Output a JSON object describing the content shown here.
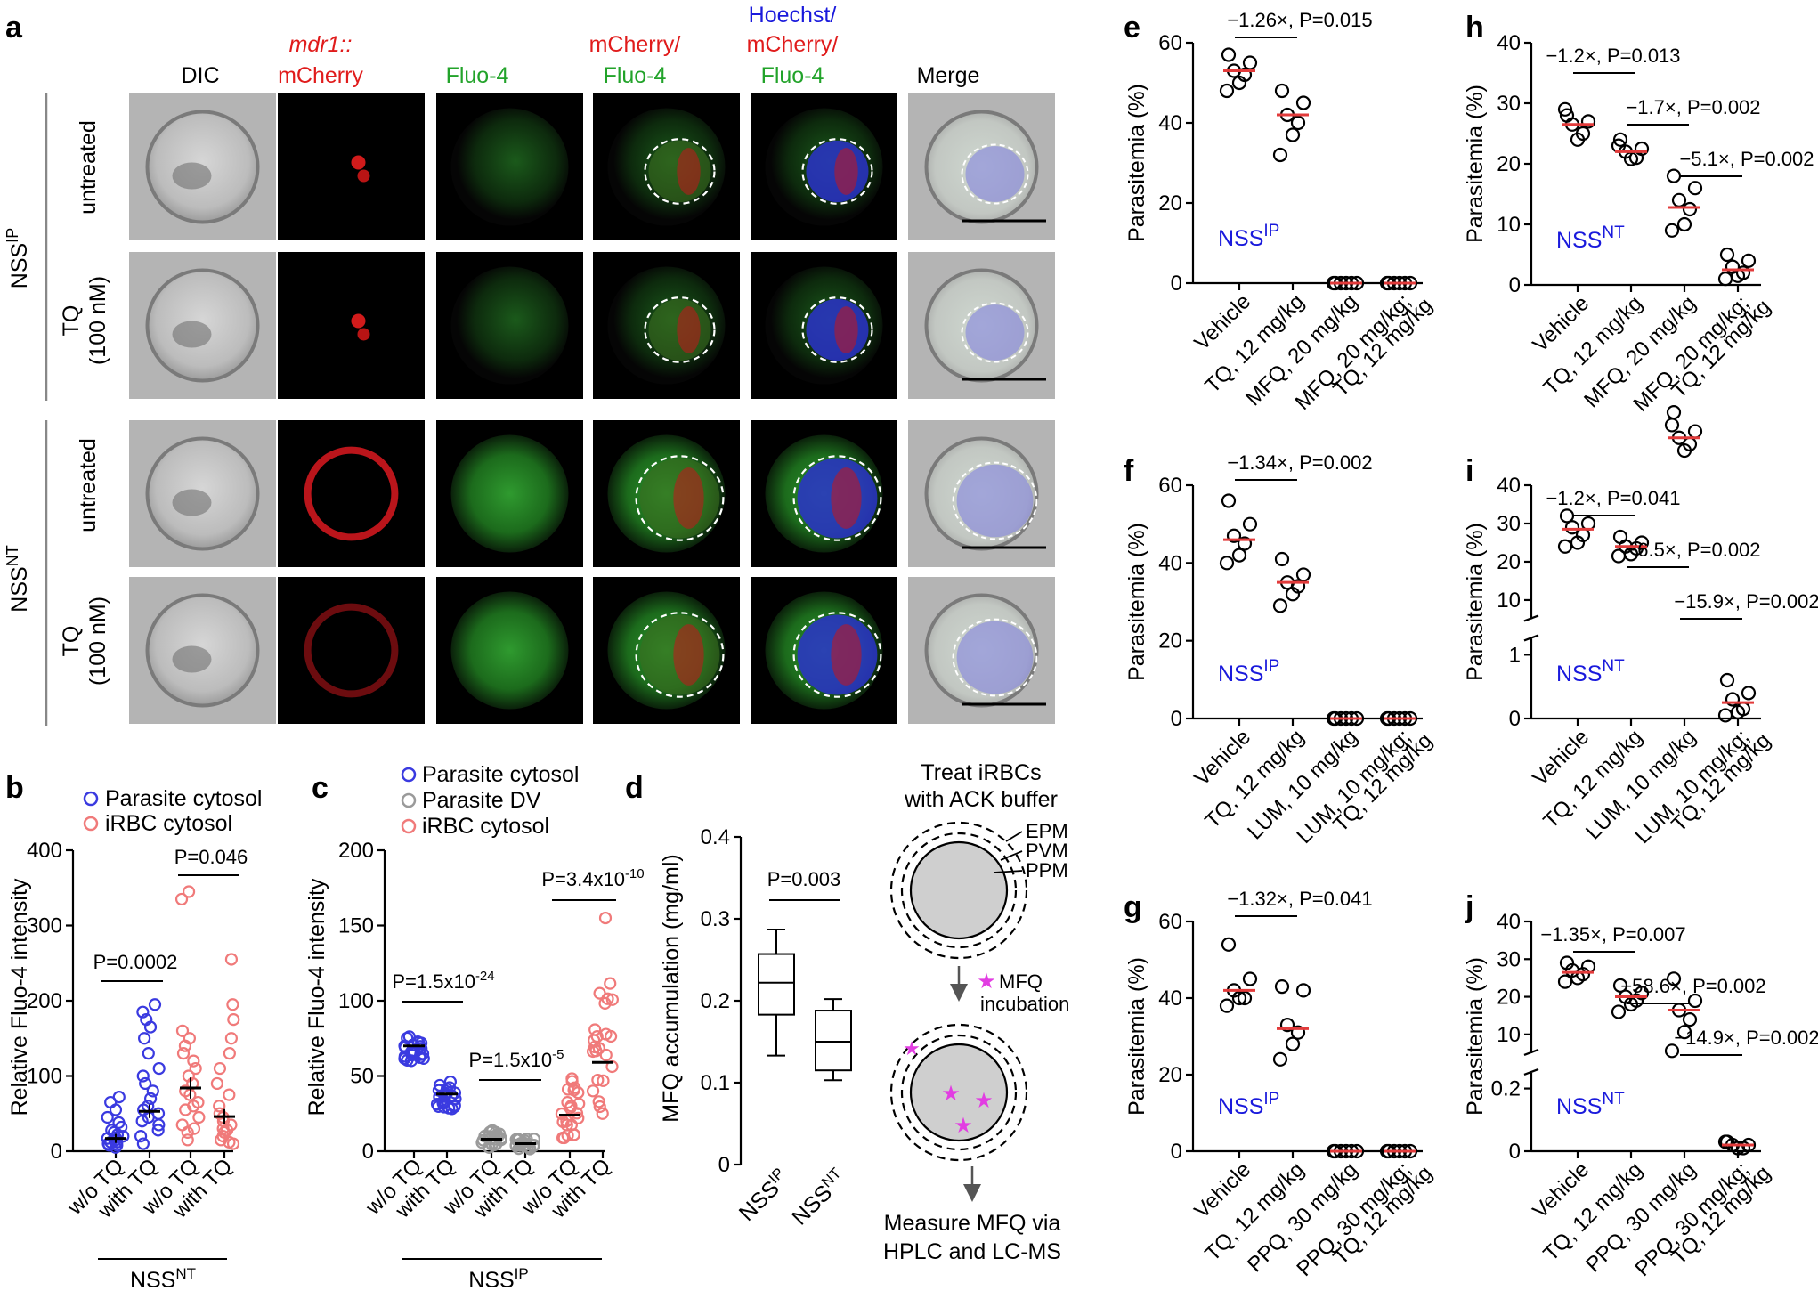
{
  "panel_letters": [
    "a",
    "b",
    "c",
    "d",
    "e",
    "f",
    "g",
    "h",
    "i",
    "j"
  ],
  "panel_a": {
    "columns": [
      {
        "text": "DIC",
        "color": "#000000"
      },
      {
        "text": "mdr1::",
        "line2": "mCherry",
        "color": "#e01b1b"
      },
      {
        "text": "Fluo-4",
        "color": "#22a32a"
      },
      {
        "text": "mCherry/",
        "line2": "Fluo-4",
        "color": "#e01b1b",
        "color2": "#22a32a"
      },
      {
        "text": "Hoechst/",
        "line2": "mCherry/",
        "line3": "Fluo-4",
        "color": "#1a1adc",
        "color2": "#e01b1b",
        "color3": "#22a32a"
      },
      {
        "text": "Merge",
        "color": "#000000"
      }
    ],
    "groups": [
      {
        "name": "NSS",
        "sup": "IP",
        "rows": [
          {
            "l1": "untreated"
          },
          {
            "l1": "TQ",
            "l2": "(100 nM)"
          }
        ]
      },
      {
        "name": "NSS",
        "sup": "NT",
        "rows": [
          {
            "l1": "untreated"
          },
          {
            "l1": "TQ",
            "l2": "(100 nM)"
          }
        ]
      }
    ]
  },
  "chart_data": [
    {
      "id": "b",
      "type": "scatter",
      "ylabel": "Relative Fluo-4 intensity",
      "ylim": [
        0,
        400
      ],
      "yticks": [
        0,
        100,
        200,
        300,
        400
      ],
      "legend": [
        {
          "name": "Parasite cytosol",
          "color": "#3a3ae0"
        },
        {
          "name": "iRBC cytosol",
          "color": "#f07a7a"
        }
      ],
      "categories": [
        "w/o TQ",
        "with TQ",
        "w/o TQ",
        "with TQ"
      ],
      "group_label": "NSS",
      "group_sup": "NT",
      "series": [
        {
          "name": "Parasite cytosol",
          "mean": [
            17,
            53
          ],
          "sem": [
            6,
            9
          ]
        },
        {
          "name": "iRBC cytosol",
          "mean": [
            84,
            46
          ],
          "sem": [
            14,
            10
          ]
        }
      ],
      "comparisons": [
        {
          "text": "P=0.0002"
        },
        {
          "text": "P=0.046"
        }
      ]
    },
    {
      "id": "c",
      "type": "scatter",
      "ylabel": "Relative Fluo-4 intensity",
      "ylim": [
        0,
        200
      ],
      "yticks": [
        0,
        50,
        100,
        150,
        200
      ],
      "legend": [
        {
          "name": "Parasite cytosol",
          "color": "#3a3ae0"
        },
        {
          "name": "Parasite DV",
          "color": "#9a9a9a"
        },
        {
          "name": "iRBC cytosol",
          "color": "#f07a7a"
        }
      ],
      "categories": [
        "w/o TQ",
        "with TQ",
        "w/o TQ",
        "with TQ",
        "w/o TQ",
        "with TQ"
      ],
      "group_label": "NSS",
      "group_sup": "IP",
      "series": [
        {
          "name": "Parasite cytosol",
          "mean": [
            70,
            38
          ]
        },
        {
          "name": "Parasite DV",
          "mean": [
            8,
            5
          ]
        },
        {
          "name": "iRBC cytosol",
          "mean": [
            24,
            59
          ]
        }
      ],
      "comparisons": [
        {
          "text": "P=1.5x10",
          "sup": "-24"
        },
        {
          "text": "P=1.5x10",
          "sup": "-5"
        },
        {
          "text": "P=3.4x10",
          "sup": "-10"
        }
      ]
    },
    {
      "id": "d",
      "type": "box",
      "ylabel": "MFQ accumulation (mg/ml)",
      "ylim": [
        0,
        0.4
      ],
      "yticks": [
        "0",
        "0.1",
        "0.2",
        "0.3",
        "0.4"
      ],
      "categories": [
        {
          "name": "NSS",
          "sup": "IP"
        },
        {
          "name": "NSS",
          "sup": "NT"
        }
      ],
      "boxes": [
        {
          "min": 0.133,
          "q1": 0.183,
          "median": 0.222,
          "q3": 0.257,
          "max": 0.287
        },
        {
          "min": 0.103,
          "q1": 0.115,
          "median": 0.15,
          "q3": 0.188,
          "max": 0.202
        }
      ],
      "comparison": "P=0.003"
    },
    {
      "id": "e",
      "type": "scatter",
      "ylabel": "Parasitemia (%)",
      "yticks": [
        0,
        20,
        40,
        60
      ],
      "label": "NSS",
      "sup": "IP",
      "categories": [
        "Vehicle",
        "TQ, 12 mg/kg",
        "MFQ, 20 mg/kg",
        "MFQ, 20 mg/kg;|TQ, 12 mg/kg"
      ],
      "means": [
        53,
        42,
        0,
        0
      ],
      "points": [
        [
          57,
          55,
          53,
          52,
          50,
          48
        ],
        [
          48,
          45,
          42,
          40,
          37,
          32
        ],
        [
          0,
          0,
          0,
          0,
          0,
          0
        ],
        [
          0,
          0,
          0,
          0,
          0,
          0
        ]
      ],
      "comparisons": [
        "−1.26×, P=0.015"
      ]
    },
    {
      "id": "f",
      "type": "scatter",
      "ylabel": "Parasitemia (%)",
      "yticks": [
        0,
        20,
        40,
        60
      ],
      "label": "NSS",
      "sup": "IP",
      "categories": [
        "Vehicle",
        "TQ, 12 mg/kg",
        "LUM, 10 mg/kg",
        "LUM, 10 mg/kg;|TQ, 12 mg/kg"
      ],
      "means": [
        46,
        35,
        0,
        0
      ],
      "points": [
        [
          56,
          50,
          47,
          45,
          42,
          40
        ],
        [
          41,
          37,
          35,
          34,
          32,
          29
        ],
        [
          0,
          0,
          0,
          0,
          0,
          0
        ],
        [
          0,
          0,
          0,
          0,
          0,
          0
        ]
      ],
      "comparisons": [
        "−1.34×, P=0.002"
      ]
    },
    {
      "id": "g",
      "type": "scatter",
      "ylabel": "Parasitemia (%)",
      "yticks": [
        0,
        20,
        40,
        60
      ],
      "label": "NSS",
      "sup": "IP",
      "categories": [
        "Vehicle",
        "TQ, 12 mg/kg",
        "PPQ, 30 mg/kg",
        "PPQ, 30 mg/kg;|TQ, 12 mg/kg"
      ],
      "means": [
        42,
        32,
        0,
        0
      ],
      "points": [
        [
          54,
          45,
          42,
          40,
          40,
          38
        ],
        [
          43,
          42,
          33,
          31,
          28,
          24
        ],
        [
          0,
          0,
          0,
          0,
          0,
          0
        ],
        [
          0,
          0,
          0,
          0,
          0,
          0
        ]
      ],
      "comparisons": [
        "−1.32×, P=0.041"
      ]
    },
    {
      "id": "h",
      "type": "scatter",
      "ylabel": "Parasitemia (%)",
      "yticks": [
        0,
        10,
        20,
        30,
        40
      ],
      "label": "NSS",
      "sup": "NT",
      "categories": [
        "Vehicle",
        "TQ, 12 mg/kg",
        "MFQ, 20 mg/kg",
        "MFQ, 20 mg/kg;|TQ, 12 mg/kg"
      ],
      "means": [
        26.5,
        22,
        12.8,
        2.5
      ],
      "points": [
        [
          28,
          27,
          26.5,
          25,
          24,
          29
        ],
        [
          24,
          22.5,
          22,
          21,
          20.8,
          23
        ],
        [
          18,
          16,
          14,
          12.5,
          10,
          9
        ],
        [
          5,
          4,
          3,
          2,
          1.5,
          1
        ]
      ],
      "comparisons": [
        "−1.2×, P=0.013",
        "−1.7×, P=0.002",
        "−5.1×, P=0.002"
      ]
    },
    {
      "id": "i",
      "type": "scatter",
      "ylabel": "Parasitemia (%)",
      "yticks_upper": [
        10,
        20,
        30,
        40
      ],
      "yticks_lower": [
        0,
        1
      ],
      "label": "NSS",
      "sup": "NT",
      "categories": [
        "Vehicle",
        "TQ, 12 mg/kg",
        "LUM, 10 mg/kg",
        "LUM, 10 mg/kg;|TQ, 12 mg/kg"
      ],
      "means": [
        28.5,
        24,
        4.4,
        0.25
      ],
      "points": [
        [
          32,
          30,
          29,
          27,
          25,
          24
        ],
        [
          26.5,
          25,
          24,
          23.5,
          22,
          21.5
        ],
        [
          4.8,
          4.5,
          4.4,
          4.3,
          4.2,
          4.6
        ],
        [
          0.6,
          0.4,
          0.3,
          0.15,
          0.1,
          0.05
        ]
      ],
      "comparisons": [
        "−1.2×, P=0.041",
        "−6.5×, P=0.002",
        "−15.9×, P=0.002"
      ]
    },
    {
      "id": "j",
      "type": "scatter",
      "ylabel": "Parasitemia (%)",
      "yticks_upper": [
        10,
        20,
        30,
        40
      ],
      "yticks_lower": [
        0,
        0.2
      ],
      "label": "NSS",
      "sup": "NT",
      "categories": [
        "Vehicle",
        "TQ, 12 mg/kg",
        "PPQ, 30 mg/kg",
        "PPQ, 30 mg/kg;|TQ, 12 mg/kg"
      ],
      "means": [
        26.5,
        20,
        0.45,
        0.02
      ],
      "points": [
        [
          29,
          28,
          27,
          26,
          25,
          24
        ],
        [
          23,
          21,
          20,
          19,
          18,
          16
        ],
        [
          0.55,
          0.48,
          0.45,
          0.42,
          0.38,
          0.32
        ],
        [
          0.03,
          0.02,
          0.02,
          0.01,
          0.01,
          0.03
        ]
      ],
      "comparisons": [
        "−1.35×, P=0.007",
        "−58.6×, P=0.002",
        "−14.9×, P=0.002"
      ]
    }
  ],
  "schematic": {
    "title_l1": "Treat iRBCs",
    "title_l2": "with ACK buffer",
    "membranes": [
      "EPM",
      "PVM",
      "PPM"
    ],
    "step2_l1": "MFQ",
    "step2_l2": "incubation",
    "final_l1": "Measure MFQ via",
    "final_l2": "HPLC and LC-MS"
  }
}
